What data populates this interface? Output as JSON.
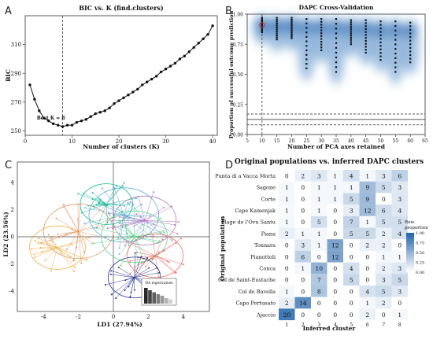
{
  "chart_data": [
    {
      "panel": "A",
      "type": "line",
      "title": "BIC vs. K (find.clusters)",
      "xlabel": "Number of clusters (K)",
      "ylabel": "BIC",
      "xlim": [
        0,
        41
      ],
      "ylim": [
        247,
        330
      ],
      "xticks": [
        0,
        10,
        20,
        30,
        40
      ],
      "yticks": [
        250,
        270,
        290,
        310
      ],
      "x": [
        1,
        2,
        3,
        4,
        5,
        6,
        7,
        8,
        9,
        10,
        11,
        12,
        13,
        14,
        15,
        16,
        17,
        18,
        19,
        20,
        21,
        22,
        23,
        24,
        25,
        26,
        27,
        28,
        29,
        30,
        31,
        32,
        33,
        34,
        35,
        36,
        37,
        38,
        39,
        40
      ],
      "y": [
        282,
        272,
        264,
        259,
        257,
        255,
        254,
        253,
        254,
        254,
        256,
        257,
        258,
        260,
        262,
        263,
        264,
        266,
        269,
        271,
        273,
        275,
        277,
        279,
        282,
        284,
        286,
        288,
        291,
        293,
        295,
        297,
        300,
        302,
        305,
        308,
        311,
        314,
        317,
        323
      ],
      "vline_x": 8,
      "annotation": "Best K = 8"
    },
    {
      "panel": "B",
      "type": "scatter",
      "title": "DAPC Cross-Validation",
      "xlabel": "Number of PCA axes retained",
      "ylabel": "Proportion of successful outcome prediction",
      "xlim": [
        5,
        65
      ],
      "ylim": [
        0,
        1.0
      ],
      "xticks": [
        5,
        10,
        15,
        20,
        25,
        30,
        35,
        40,
        45,
        50,
        55,
        60,
        65
      ],
      "yticks": [
        0.0,
        0.25,
        0.5,
        0.75,
        1.0
      ],
      "ytick_labels": [
        "0.00",
        "0.25",
        "0.50",
        "0.75",
        "1.00"
      ],
      "x": [
        10,
        15,
        20,
        25,
        30,
        35,
        40,
        45,
        50,
        55,
        60
      ],
      "y_max": [
        0.97,
        0.97,
        0.97,
        0.96,
        0.96,
        0.96,
        0.95,
        0.95,
        0.94,
        0.94,
        0.93
      ],
      "y_min": [
        0.85,
        0.79,
        0.8,
        0.55,
        0.7,
        0.52,
        0.75,
        0.68,
        0.62,
        0.52,
        0.6
      ],
      "highlight_x": 10,
      "highlight_y": 0.91,
      "hlines_solid": [
        0.125
      ],
      "hlines_dashed": [
        0.08,
        0.17
      ]
    },
    {
      "panel": "C",
      "type": "scatter",
      "xlabel": "LD1 (27.94%)",
      "ylabel": "LD2 (23.56%)",
      "xticks": [
        -4,
        -2,
        0,
        2,
        4
      ],
      "yticks": [
        -4,
        -2,
        0,
        2,
        4
      ],
      "xlim": [
        -5.5,
        5.5
      ],
      "ylim": [
        -5.5,
        5.5
      ],
      "inset_label": "DA eigenvalues",
      "eigenvalues": [
        1.0,
        0.85,
        0.72,
        0.6,
        0.5,
        0.35,
        0.28
      ],
      "clusters": [
        {
          "cx": -3.2,
          "cy": -0.8,
          "r": 1.6,
          "color": "#f5b041"
        },
        {
          "cx": -2.0,
          "cy": 0.4,
          "r": 2.0,
          "color": "#e59866"
        },
        {
          "cx": 0.6,
          "cy": 1.6,
          "r": 2.0,
          "color": "#5dade2"
        },
        {
          "cx": 1.8,
          "cy": 1.2,
          "r": 1.8,
          "color": "#af7ac5"
        },
        {
          "cx": 1.2,
          "cy": 0.0,
          "r": 1.9,
          "color": "#58d68d"
        },
        {
          "cx": 2.4,
          "cy": -1.4,
          "r": 1.6,
          "color": "#ec7063"
        },
        {
          "cx": 1.2,
          "cy": -3.0,
          "r": 1.5,
          "color": "#283593"
        },
        {
          "cx": -0.4,
          "cy": 2.4,
          "r": 1.5,
          "color": "#1abc9c"
        }
      ]
    },
    {
      "panel": "D",
      "type": "heatmap",
      "title": "Original populations vs. inferred DAPC clusters",
      "xlabel": "Inferred cluster",
      "ylabel": "Original population",
      "columns": [
        "1",
        "2",
        "3",
        "4",
        "5",
        "6",
        "7",
        "8"
      ],
      "rows": [
        "Punta di a Vacca Morta",
        "Sagone",
        "Corte",
        "Cape Kamenjak",
        "Plage de l'Ovu Santu",
        "Piana",
        "Tonnara",
        "Pianottoli",
        "Conca",
        "Col de Saint-Eustache",
        "Col de Bavella",
        "Capo Pertusato",
        "Ajaccio"
      ],
      "values": [
        [
          0,
          2,
          3,
          1,
          4,
          1,
          3,
          6
        ],
        [
          1,
          0,
          1,
          1,
          1,
          9,
          5,
          3
        ],
        [
          1,
          0,
          1,
          1,
          5,
          9,
          0,
          3
        ],
        [
          1,
          0,
          1,
          0,
          3,
          12,
          6,
          4
        ],
        [
          1,
          0,
          5,
          0,
          7,
          1,
          5,
          5
        ],
        [
          2,
          1,
          1,
          0,
          5,
          5,
          2,
          4
        ],
        [
          0,
          3,
          1,
          12,
          0,
          2,
          2,
          0
        ],
        [
          0,
          6,
          0,
          12,
          0,
          0,
          1,
          1
        ],
        [
          0,
          1,
          10,
          0,
          4,
          0,
          2,
          3
        ],
        [
          0,
          0,
          7,
          0,
          5,
          0,
          3,
          5
        ],
        [
          1,
          0,
          8,
          0,
          0,
          4,
          5,
          3
        ],
        [
          2,
          14,
          0,
          0,
          0,
          1,
          2,
          0
        ],
        [
          20,
          0,
          0,
          0,
          0,
          2,
          0,
          1
        ]
      ],
      "legend_title": "Row\nproportion",
      "legend_ticks": [
        "1.00",
        "0.75",
        "0.50",
        "0.25",
        "0.00"
      ]
    }
  ],
  "panels": {
    "A": "A",
    "B": "B",
    "C": "C",
    "D": "D"
  }
}
